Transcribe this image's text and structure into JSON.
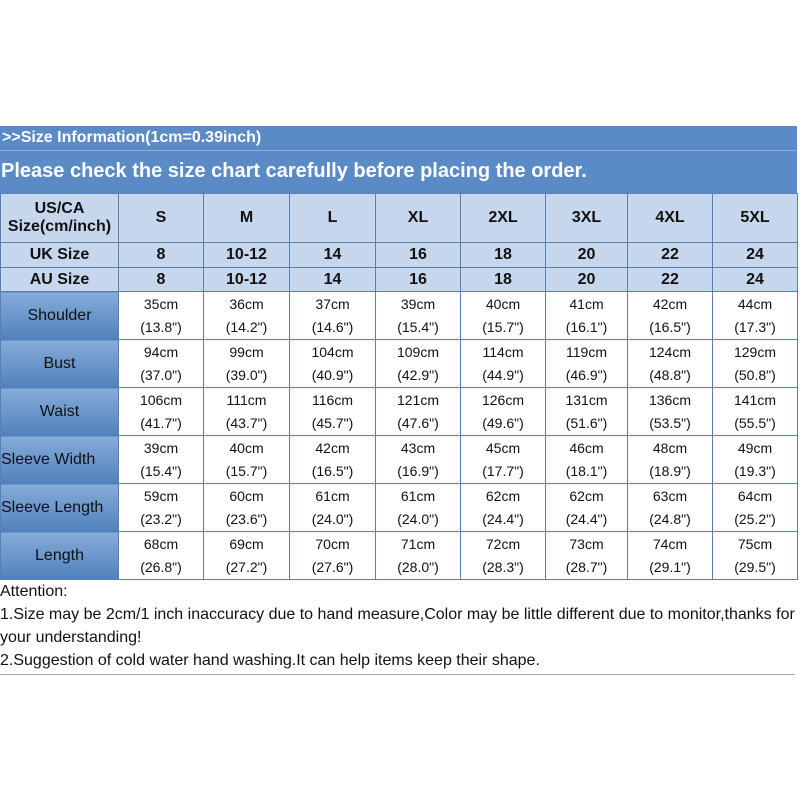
{
  "header": {
    "title": ">>Size Information(1cm=0.39inch)",
    "subtitle": "Please check the size chart carefully before placing the order."
  },
  "table": {
    "corner": "US/CA\nSize(cm/inch)",
    "sizes": [
      "S",
      "M",
      "L",
      "XL",
      "2XL",
      "3XL",
      "4XL",
      "5XL"
    ],
    "region_rows": [
      {
        "label": "UK Size",
        "values": [
          "8",
          "10-12",
          "14",
          "16",
          "18",
          "20",
          "22",
          "24"
        ]
      },
      {
        "label": "AU Size",
        "values": [
          "8",
          "10-12",
          "14",
          "16",
          "18",
          "20",
          "22",
          "24"
        ]
      }
    ],
    "rows": [
      {
        "label": "Shoulder",
        "cm": [
          "35cm",
          "36cm",
          "37cm",
          "39cm",
          "40cm",
          "41cm",
          "42cm",
          "44cm"
        ],
        "inch": [
          "(13.8\")",
          "(14.2\")",
          "(14.6\")",
          "(15.4\")",
          "(15.7\")",
          "(16.1\")",
          "(16.5\")",
          "(17.3\")"
        ]
      },
      {
        "label": "Bust",
        "cm": [
          "94cm",
          "99cm",
          "104cm",
          "109cm",
          "114cm",
          "119cm",
          "124cm",
          "129cm"
        ],
        "inch": [
          "(37.0\")",
          "(39.0\")",
          "(40.9\")",
          "(42.9\")",
          "(44.9\")",
          "(46.9\")",
          "(48.8\")",
          "(50.8\")"
        ]
      },
      {
        "label": "Waist",
        "cm": [
          "106cm",
          "111cm",
          "116cm",
          "121cm",
          "126cm",
          "131cm",
          "136cm",
          "141cm"
        ],
        "inch": [
          "(41.7\")",
          "(43.7\")",
          "(45.7\")",
          "(47.6\")",
          "(49.6\")",
          "(51.6\")",
          "(53.5\")",
          "(55.5\")"
        ]
      },
      {
        "label": "Sleeve Width",
        "cm": [
          "39cm",
          "40cm",
          "42cm",
          "43cm",
          "45cm",
          "46cm",
          "48cm",
          "49cm"
        ],
        "inch": [
          "(15.4\")",
          "(15.7\")",
          "(16.5\")",
          "(16.9\")",
          "(17.7\")",
          "(18.1\")",
          "(18.9\")",
          "(19.3\")"
        ]
      },
      {
        "label": "Sleeve Length",
        "cm": [
          "59cm",
          "60cm",
          "61cm",
          "61cm",
          "62cm",
          "62cm",
          "63cm",
          "64cm"
        ],
        "inch": [
          "(23.2\")",
          "(23.6\")",
          "(24.0\")",
          "(24.0\")",
          "(24.4\")",
          "(24.4\")",
          "(24.8\")",
          "(25.2\")"
        ]
      },
      {
        "label": "Length",
        "cm": [
          "68cm",
          "69cm",
          "70cm",
          "71cm",
          "72cm",
          "73cm",
          "74cm",
          "75cm"
        ],
        "inch": [
          "(26.8\")",
          "(27.2\")",
          "(27.6\")",
          "(28.0\")",
          "(28.3\")",
          "(28.7\")",
          "(29.1\")",
          "(29.5\")"
        ]
      }
    ]
  },
  "notes": {
    "heading": "Attention:",
    "lines": [
      "1.Size may be 2cm/1 inch inaccuracy due to hand measure,Color may be little different due to monitor,thanks for your understanding!",
      "2.Suggestion of cold water hand washing.It can help items keep their shape."
    ]
  }
}
